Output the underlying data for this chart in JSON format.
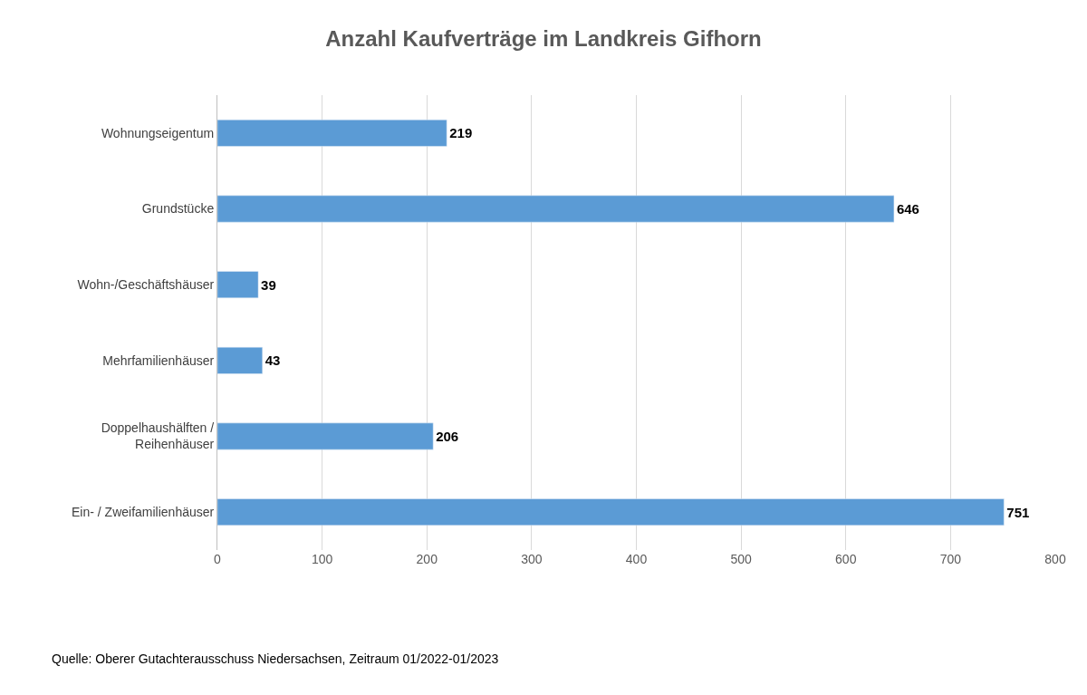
{
  "chart_data": {
    "type": "bar",
    "orientation": "horizontal",
    "title": "Anzahl Kaufverträge im Landkreis Gifhorn",
    "categories": [
      "Wohnungseigentum",
      "Grundstücke",
      "Wohn-/Geschäftshäuser",
      "Mehrfamilienhäuser",
      "Doppelhaushälften /\nReihenhäuser",
      "Ein- / Zweifamilienhäuser"
    ],
    "values": [
      219,
      646,
      39,
      43,
      206,
      751
    ],
    "color": "#5b9bd5",
    "xlim": [
      0,
      800
    ],
    "xticks": [
      0,
      100,
      200,
      300,
      400,
      500,
      600,
      700,
      800
    ],
    "grid": "x",
    "data_labels": true,
    "annotations": [
      "Quelle: Oberer Gutachterausschuss Niedersachsen, Zeitraum 01/2022-01/2023"
    ]
  }
}
